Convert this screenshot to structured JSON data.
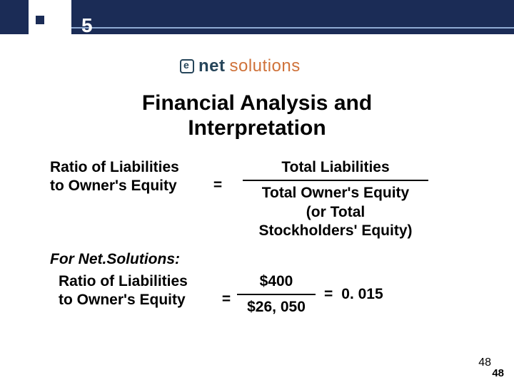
{
  "header": {
    "bar_color": "#1b2c56",
    "accent_line_color": "#8faad2",
    "chapter_number": "5"
  },
  "logo": {
    "net_text": "net",
    "net_color": "#26455a",
    "solutions_text": "solutions",
    "solutions_color": "#cf723a"
  },
  "title": {
    "line1": "Financial Analysis and",
    "line2": "Interpretation",
    "fontsize": 30,
    "fontweight": "bold",
    "color": "#000000"
  },
  "formula1": {
    "lhs_line1": "Ratio of Liabilities",
    "lhs_line2": "to Owner's Equity",
    "eq": "=",
    "numerator": "Total Liabilities",
    "denom_line1": "Total Owner's Equity",
    "denom_line2": "(or Total",
    "denom_line3": "Stockholders' Equity)",
    "fontsize": 21,
    "fontweight": "bold"
  },
  "for_label": "For Net.Solutions:",
  "formula2": {
    "lhs_line1": "Ratio of Liabilities",
    "lhs_line2": "to Owner's Equity",
    "eq": "=",
    "numerator": "$400",
    "denominator": "$26, 050",
    "eq2": "=",
    "result": "0. 015",
    "fontsize": 21
  },
  "page": {
    "num1": "48",
    "num2": "48"
  },
  "background_color": "#ffffff"
}
